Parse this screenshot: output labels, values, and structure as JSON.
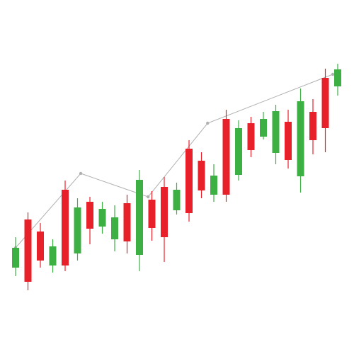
{
  "chart_data": {
    "type": "candlestick",
    "up_color": "#3cb043",
    "down_color": "#e8202a",
    "xlim": [
      -1.257,
      27.314
    ],
    "ylim": [
      0,
      500
    ],
    "open": [
      122,
      190,
      173,
      125,
      232,
      142,
      215,
      180,
      162,
      213,
      140,
      218,
      236,
      203,
      290,
      273,
      225,
      332,
      253,
      326,
      307,
      284,
      328,
      251,
      342,
      390,
      378
    ],
    "high": [
      165,
      200,
      185,
      162,
      245,
      220,
      222,
      215,
      210,
      225,
      260,
      230,
      250,
      242,
      302,
      285,
      268,
      345,
      330,
      335,
      342,
      352,
      345,
      375,
      360,
      403,
      410
    ],
    "low": [
      110,
      90,
      122,
      115,
      117,
      132,
      155,
      170,
      145,
      142,
      117,
      160,
      130,
      197,
      187,
      220,
      215,
      215,
      245,
      278,
      303,
      268,
      262,
      228,
      282,
      285,
      365
    ],
    "close": [
      150,
      102,
      132,
      152,
      125,
      207,
      177,
      205,
      193,
      159,
      246,
      178,
      165,
      232,
      199,
      231,
      252,
      225,
      319,
      288,
      332,
      343,
      274,
      357,
      302,
      319,
      402
    ],
    "trend": {
      "color": "#b0b0b0",
      "x": [
        0,
        5.26,
        10.7,
        15.5,
        25.6
      ],
      "values": [
        150,
        255,
        222,
        326,
        395
      ]
    }
  }
}
